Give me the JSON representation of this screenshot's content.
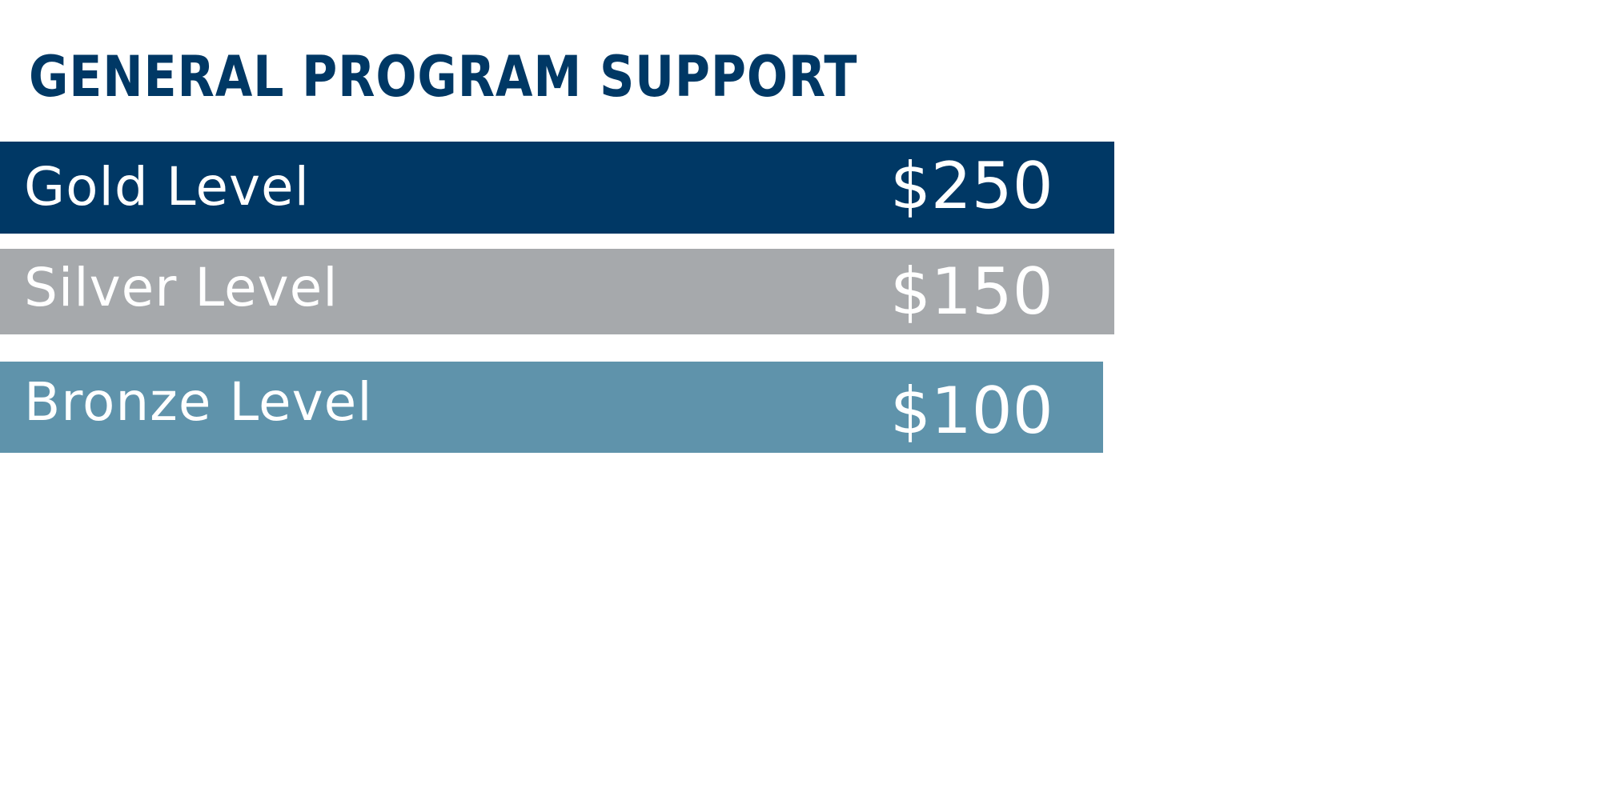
{
  "title": "GENERAL PROGRAM SUPPORT",
  "levels": [
    {
      "name": "Gold Level",
      "price": "$250",
      "color": "#003865"
    },
    {
      "name": "Silver Level",
      "price": "$150",
      "color": "#a6a9ac"
    },
    {
      "name": "Bronze Level",
      "price": "$100",
      "color": "#5f93ab"
    }
  ]
}
